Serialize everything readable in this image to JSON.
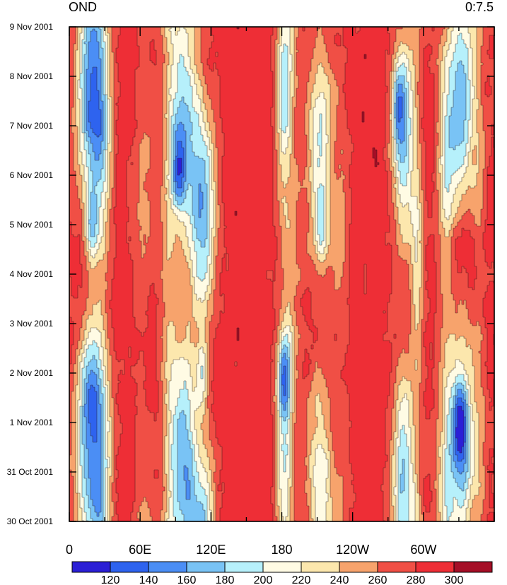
{
  "title_left": "OND",
  "title_right": "0:7.5",
  "chart_data": {
    "type": "heatmap",
    "title": "",
    "xlabel": "",
    "ylabel": "",
    "x_ticks": [
      "0",
      "60E",
      "120E",
      "180",
      "120W",
      "60W"
    ],
    "x_range": [
      0,
      360
    ],
    "y_ticks": [
      "30 Oct 2001",
      "31 Oct 2001",
      "1 Nov 2001",
      "2 Nov 2001",
      "3 Nov 2001",
      "4 Nov 2001",
      "5 Nov 2001",
      "6 Nov 2001",
      "7 Nov 2001",
      "8 Nov 2001",
      "9 Nov 2001"
    ],
    "y_range_days": [
      0,
      10
    ],
    "colorbar": {
      "labels": [
        "120",
        "140",
        "160",
        "180",
        "200",
        "220",
        "240",
        "260",
        "280",
        "300"
      ],
      "colors": [
        "#2b1fd6",
        "#2e63ef",
        "#4b8ef5",
        "#79c3f5",
        "#b6f0fb",
        "#fffbe4",
        "#fce7ad",
        "#f7a36c",
        "#f04f45",
        "#ee2e36",
        "#a50e26"
      ]
    },
    "features": [
      {
        "lon": 18,
        "day": 6.0,
        "min": 140
      },
      {
        "lon": 92,
        "day": 7.0,
        "min": 180
      },
      {
        "lon": 112,
        "day": 3.0,
        "min": 170
      },
      {
        "lon": 181,
        "day": 3.0,
        "min": 170
      },
      {
        "lon": 212,
        "day": 6.0,
        "min": 200
      },
      {
        "lon": 278,
        "day": 8.5,
        "min": 190
      },
      {
        "lon": 330,
        "day": 2.0,
        "min": 160
      }
    ]
  }
}
